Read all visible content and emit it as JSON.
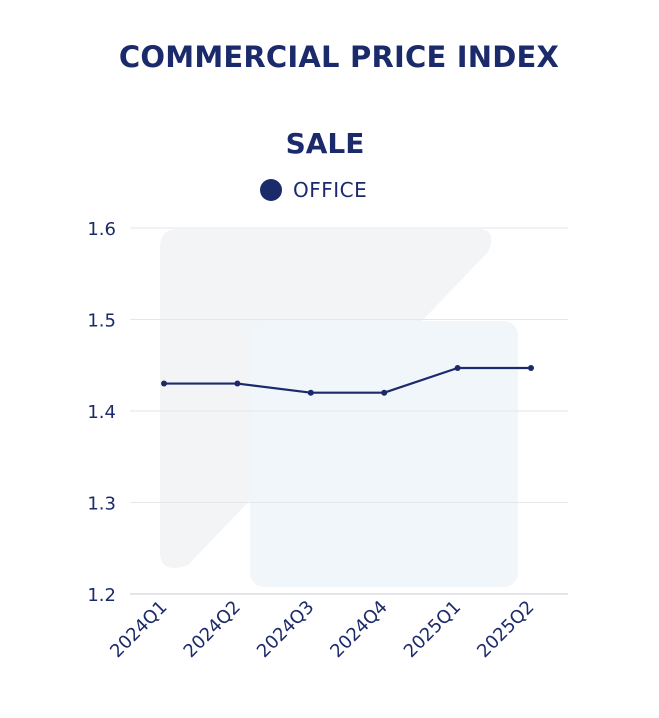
{
  "chart_data": {
    "type": "line",
    "title": "COMMERCIAL PRICE INDEX",
    "subtitle": "SALE",
    "categories": [
      "2024Q1",
      "2024Q2",
      "2024Q3",
      "2024Q4",
      "2025Q1",
      "2025Q2"
    ],
    "series": [
      {
        "name": "OFFICE",
        "values": [
          1.43,
          1.43,
          1.42,
          1.42,
          1.447,
          1.447
        ]
      }
    ],
    "yticks": [
      "1.2",
      "1.3",
      "1.4",
      "1.5",
      "1.6"
    ],
    "ylim": [
      1.2,
      1.6
    ],
    "grid": true,
    "legend_position": "top-center",
    "colors": {
      "series": "#1b2a6b",
      "text": "#1b2a6b",
      "grid": "#e6e6ea",
      "axis": "#c9c9d6"
    }
  }
}
